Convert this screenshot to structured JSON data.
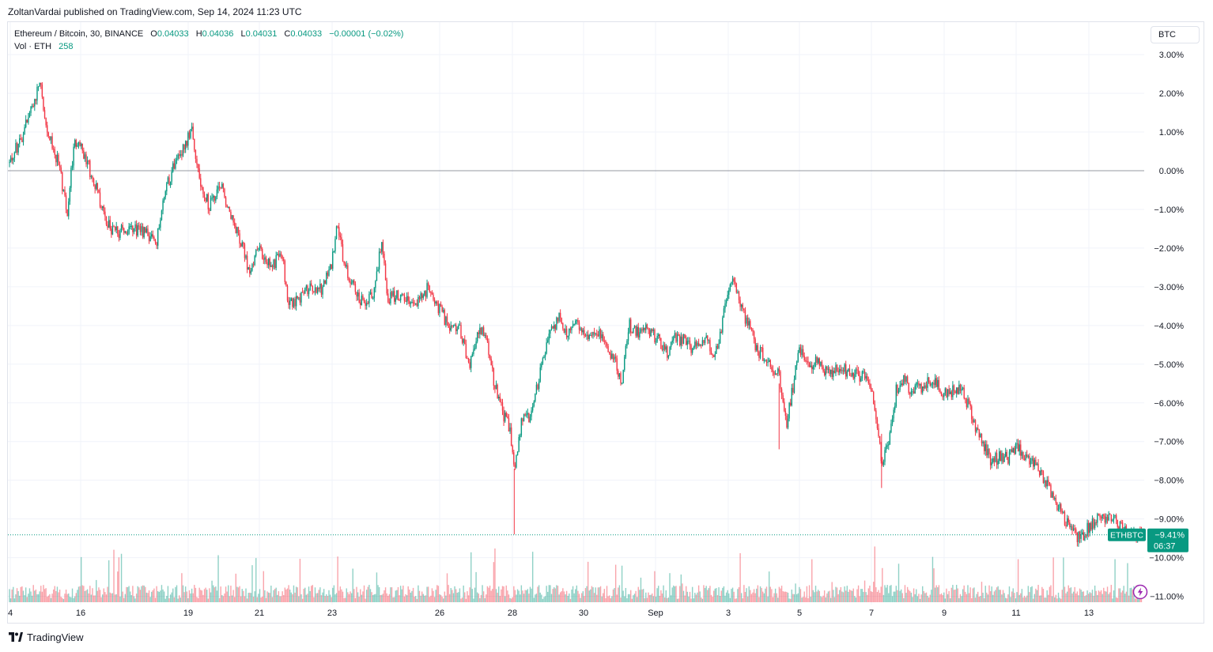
{
  "header": {
    "published_text": "ZoltanVardai published on TradingView.com, Sep 14, 2024 11:23 UTC"
  },
  "legend": {
    "symbol": "Ethereum / Bitcoin, 30, BINANCE",
    "open_label": "O",
    "open": "0.04033",
    "high_label": "H",
    "high": "0.04036",
    "low_label": "L",
    "low": "0.04031",
    "close_label": "C",
    "close": "0.04033",
    "change": "−0.00001 (−0.02%)",
    "volume_label": "Vol · ETH",
    "volume": "258"
  },
  "currency_button": "BTC",
  "price_tag": {
    "symbol": "ETHBTC",
    "value": "−9.41%",
    "countdown": "06:37"
  },
  "footer": {
    "brand": "TradingView"
  },
  "icons": {
    "logo": "tradingview-logo-icon",
    "snapshot": "lightning-icon"
  },
  "colors": {
    "up": "#089981",
    "down": "#f23645",
    "grid": "#f0f3fa",
    "tag": "#089981"
  },
  "chart_data": {
    "type": "candlestick",
    "scale": "percent",
    "baseline": "0.00%",
    "ylim": [
      -11.2,
      3.4
    ],
    "y_ticks": [
      "3.00%",
      "2.00%",
      "1.00%",
      "0.00%",
      "−1.00%",
      "−2.00%",
      "−3.00%",
      "−4.00%",
      "−5.00%",
      "−6.00%",
      "−7.00%",
      "−8.00%",
      "−9.00%",
      "−10.00%",
      "−11.00%"
    ],
    "x_ticks": [
      "4",
      "16",
      "19",
      "21",
      "23",
      "26",
      "28",
      "30",
      "Sep",
      "3",
      "5",
      "7",
      "9",
      "11",
      "13"
    ],
    "last_value": -9.41,
    "series": [
      {
        "name": "Ethereum / Bitcoin",
        "points": [
          [
            0,
            0.2
          ],
          [
            0.5,
            0.9
          ],
          [
            1.0,
            1.8
          ],
          [
            1.2,
            2.3
          ],
          [
            1.5,
            1.1
          ],
          [
            2.0,
            0.1
          ],
          [
            2.3,
            -1.1
          ],
          [
            2.6,
            0.8
          ],
          [
            3.0,
            0.4
          ],
          [
            3.5,
            -0.5
          ],
          [
            3.8,
            -1.2
          ],
          [
            4.2,
            -1.6
          ],
          [
            5.0,
            -1.5
          ],
          [
            5.6,
            -1.7
          ],
          [
            5.9,
            -1.8
          ],
          [
            6.2,
            -0.6
          ],
          [
            6.6,
            0.2
          ],
          [
            7.0,
            0.6
          ],
          [
            7.3,
            1.2
          ],
          [
            7.6,
            -0.3
          ],
          [
            8.0,
            -0.9
          ],
          [
            8.5,
            -0.4
          ],
          [
            8.8,
            -1.0
          ],
          [
            9.2,
            -1.7
          ],
          [
            9.6,
            -2.6
          ],
          [
            10.0,
            -2.0
          ],
          [
            10.5,
            -2.5
          ],
          [
            10.9,
            -2.0
          ],
          [
            11.1,
            -3.3
          ],
          [
            11.5,
            -3.4
          ],
          [
            12.0,
            -3.0
          ],
          [
            12.5,
            -3.1
          ],
          [
            12.9,
            -2.4
          ],
          [
            13.1,
            -1.3
          ],
          [
            13.4,
            -2.4
          ],
          [
            13.8,
            -3.0
          ],
          [
            14.2,
            -3.5
          ],
          [
            14.6,
            -3.1
          ],
          [
            14.9,
            -1.7
          ],
          [
            15.1,
            -3.3
          ],
          [
            15.6,
            -3.2
          ],
          [
            16.0,
            -3.4
          ],
          [
            16.4,
            -3.3
          ],
          [
            16.8,
            -3.0
          ],
          [
            17.2,
            -3.6
          ],
          [
            17.6,
            -4.0
          ],
          [
            18.0,
            -4.0
          ],
          [
            18.4,
            -5.0
          ],
          [
            18.7,
            -4.2
          ],
          [
            19.0,
            -4.1
          ],
          [
            19.4,
            -5.5
          ],
          [
            19.7,
            -6.2
          ],
          [
            20.0,
            -6.6
          ],
          [
            20.2,
            -7.7
          ],
          [
            20.5,
            -6.5
          ],
          [
            20.9,
            -6.3
          ],
          [
            21.3,
            -5.0
          ],
          [
            21.7,
            -4.1
          ],
          [
            22.0,
            -3.8
          ],
          [
            22.3,
            -4.2
          ],
          [
            22.7,
            -3.9
          ],
          [
            23.1,
            -4.3
          ],
          [
            23.5,
            -4.1
          ],
          [
            23.9,
            -4.5
          ],
          [
            24.2,
            -4.9
          ],
          [
            24.5,
            -5.5
          ],
          [
            24.8,
            -4.0
          ],
          [
            25.2,
            -4.2
          ],
          [
            25.6,
            -4.1
          ],
          [
            26.0,
            -4.4
          ],
          [
            26.3,
            -4.7
          ],
          [
            26.6,
            -4.3
          ],
          [
            27.0,
            -4.4
          ],
          [
            27.4,
            -4.6
          ],
          [
            27.8,
            -4.3
          ],
          [
            28.1,
            -4.7
          ],
          [
            28.4,
            -4.5
          ],
          [
            28.7,
            -3.2
          ],
          [
            29.0,
            -2.8
          ],
          [
            29.3,
            -3.6
          ],
          [
            29.6,
            -4.0
          ],
          [
            29.9,
            -4.6
          ],
          [
            30.2,
            -4.8
          ],
          [
            30.5,
            -5.0
          ],
          [
            30.8,
            -5.3
          ],
          [
            31.1,
            -6.5
          ],
          [
            31.3,
            -5.8
          ],
          [
            31.6,
            -4.6
          ],
          [
            32.0,
            -5.0
          ],
          [
            32.4,
            -4.9
          ],
          [
            32.8,
            -5.3
          ],
          [
            33.2,
            -5.1
          ],
          [
            33.6,
            -5.2
          ],
          [
            34.0,
            -5.3
          ],
          [
            34.3,
            -5.2
          ],
          [
            34.6,
            -6.0
          ],
          [
            34.9,
            -7.5
          ],
          [
            35.2,
            -7.1
          ],
          [
            35.5,
            -5.6
          ],
          [
            35.8,
            -5.4
          ],
          [
            36.1,
            -5.7
          ],
          [
            36.5,
            -5.6
          ],
          [
            36.9,
            -5.4
          ],
          [
            37.3,
            -5.7
          ],
          [
            37.6,
            -5.8
          ],
          [
            37.9,
            -5.6
          ],
          [
            38.2,
            -5.8
          ],
          [
            38.5,
            -6.3
          ],
          [
            38.9,
            -7.0
          ],
          [
            39.3,
            -7.5
          ],
          [
            39.6,
            -7.4
          ],
          [
            40.0,
            -7.4
          ],
          [
            40.3,
            -7.2
          ],
          [
            40.6,
            -7.3
          ],
          [
            41.0,
            -7.6
          ],
          [
            41.4,
            -8.0
          ],
          [
            41.8,
            -8.5
          ],
          [
            42.2,
            -9.0
          ],
          [
            42.6,
            -9.4
          ],
          [
            42.9,
            -9.5
          ],
          [
            43.3,
            -9.1
          ],
          [
            43.7,
            -8.9
          ],
          [
            44.1,
            -9.0
          ],
          [
            44.5,
            -9.2
          ],
          [
            44.9,
            -9.4
          ],
          [
            45.3,
            -9.41
          ]
        ]
      }
    ],
    "volume": {
      "name": "Vol · ETH",
      "last": 258
    }
  }
}
